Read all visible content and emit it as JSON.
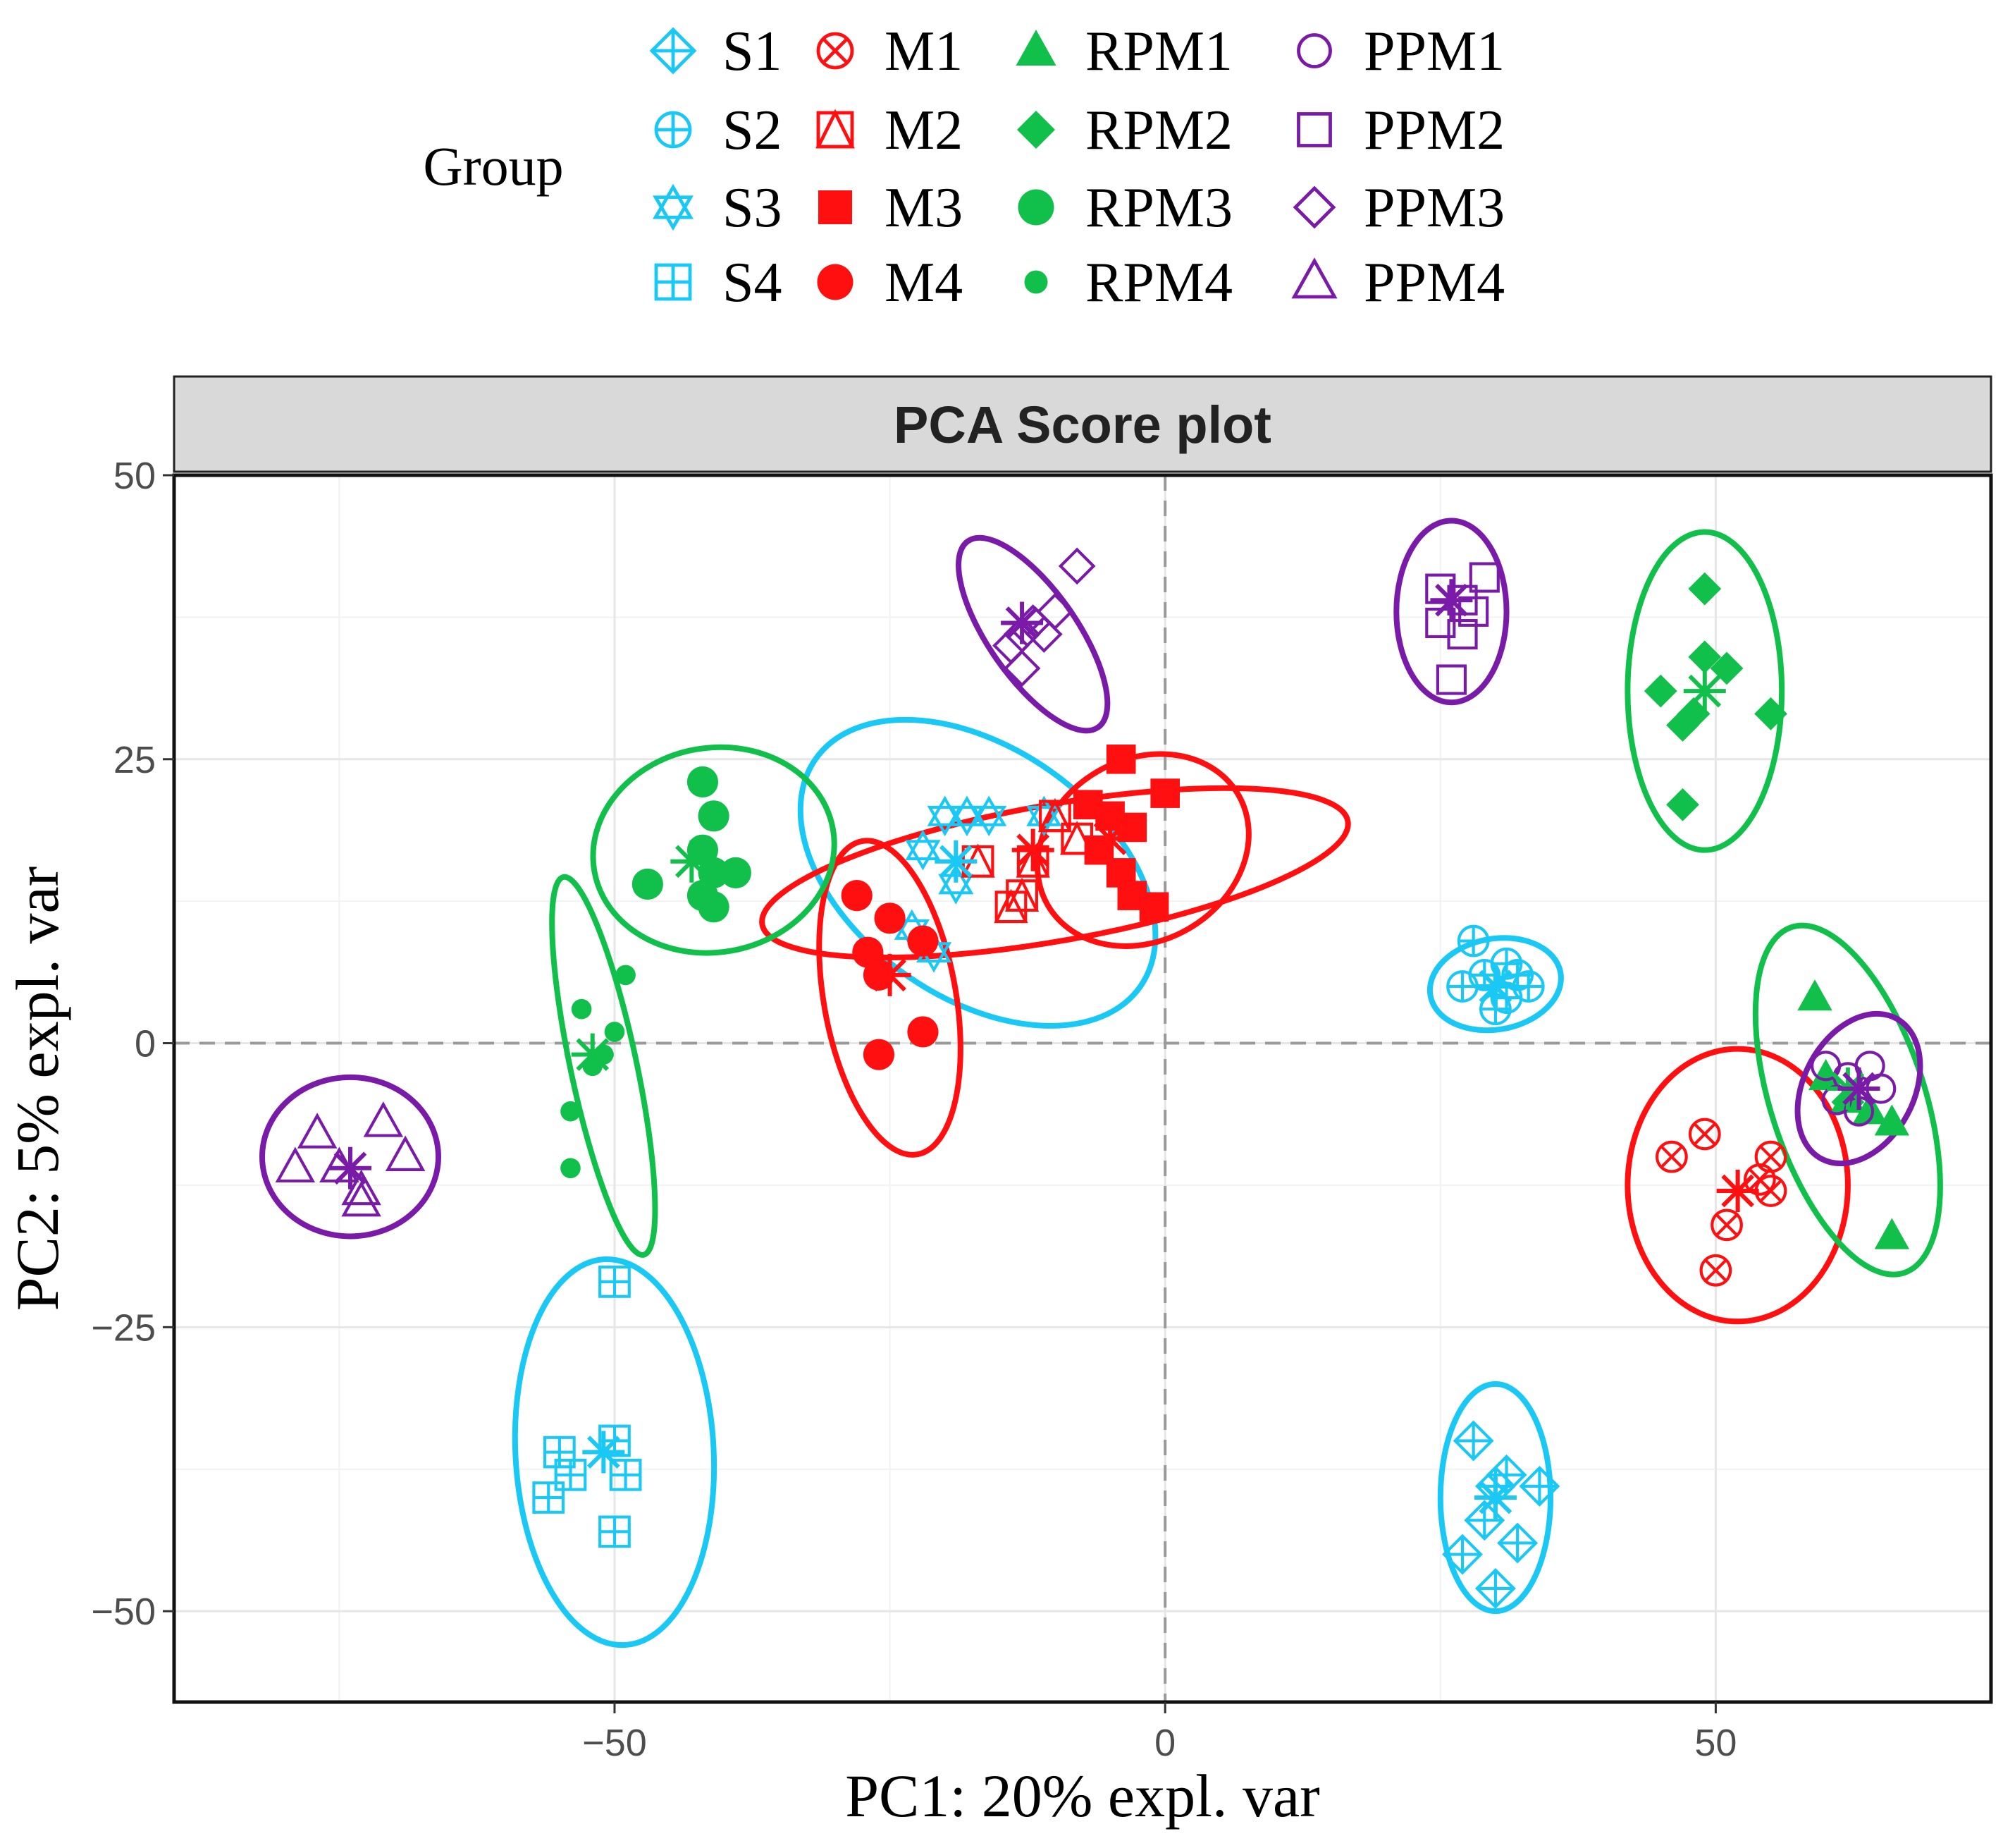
{
  "chart_data": {
    "type": "scatter",
    "title": "PCA Score plot",
    "xlabel": "PC1: 20% expl. var",
    "ylabel": "PC2: 5% expl. var",
    "xlim": [
      -90,
      75
    ],
    "ylim": [
      -58,
      50
    ],
    "x_ticks": [
      -50,
      0,
      50
    ],
    "y_ticks": [
      50,
      25,
      0,
      -25,
      -50
    ],
    "x_tick_labels": [
      "−50",
      "0",
      "50"
    ],
    "y_tick_labels": [
      "50",
      "25",
      "0",
      "−25",
      "−50"
    ],
    "grid": true,
    "reference_lines": {
      "x": 0,
      "y": 0
    },
    "legend": {
      "title": "Group",
      "placement": "top",
      "columns": [
        [
          "S1",
          "S2",
          "S3",
          "S4"
        ],
        [
          "M1",
          "M2",
          "M3",
          "M4"
        ],
        [
          "RPM1",
          "RPM2",
          "RPM3",
          "RPM4"
        ],
        [
          "PPM1",
          "PPM2",
          "PPM3",
          "PPM4"
        ]
      ]
    },
    "colors": {
      "S": "#19c8f5",
      "M": "#ff0f0f",
      "RPM": "#10c04a",
      "PPM": "#7a1aa8"
    },
    "series": [
      {
        "name": "S1",
        "family": "S",
        "marker": "diamond-plus",
        "centroid": [
          30,
          -40
        ],
        "points": [
          [
            28,
            -35
          ],
          [
            30,
            -39
          ],
          [
            31,
            -38
          ],
          [
            29,
            -42
          ],
          [
            32,
            -44
          ],
          [
            27,
            -45
          ],
          [
            34,
            -39
          ],
          [
            30,
            -48
          ]
        ],
        "ellipse": {
          "cx": 30,
          "cy": -40,
          "rx": 5,
          "ry": 10,
          "angle": 0
        }
      },
      {
        "name": "S2",
        "family": "S",
        "marker": "circle-plus",
        "centroid": [
          30,
          5
        ],
        "points": [
          [
            28,
            9
          ],
          [
            27,
            5
          ],
          [
            29,
            6
          ],
          [
            31,
            4
          ],
          [
            32,
            6
          ],
          [
            33,
            5
          ],
          [
            30,
            3
          ],
          [
            31,
            7
          ]
        ],
        "ellipse": {
          "cx": 30,
          "cy": 5.2,
          "rx": 6,
          "ry": 4,
          "angle": -10
        }
      },
      {
        "name": "S3",
        "family": "S",
        "marker": "star-of-david",
        "centroid": [
          -19,
          16
        ],
        "points": [
          [
            -20,
            20
          ],
          [
            -18,
            20
          ],
          [
            -16,
            20
          ],
          [
            -11,
            20
          ],
          [
            -22,
            17
          ],
          [
            -19,
            14
          ],
          [
            -23,
            10
          ],
          [
            -21,
            8
          ]
        ],
        "ellipse": {
          "cx": -17,
          "cy": 15,
          "rx": 18,
          "ry": 11,
          "angle": 35
        }
      },
      {
        "name": "S4",
        "family": "S",
        "marker": "square-plus",
        "centroid": [
          -51,
          -36
        ],
        "points": [
          [
            -50,
            -21
          ],
          [
            -55,
            -36
          ],
          [
            -50,
            -35
          ],
          [
            -54,
            -38
          ],
          [
            -49,
            -38
          ],
          [
            -56,
            -40
          ],
          [
            -50,
            -43
          ]
        ],
        "ellipse": {
          "cx": -50,
          "cy": -36,
          "rx": 9,
          "ry": 17,
          "angle": -3
        }
      },
      {
        "name": "M1",
        "family": "M",
        "marker": "circle-x",
        "centroid": [
          52,
          -13
        ],
        "points": [
          [
            46,
            -10
          ],
          [
            49,
            -8
          ],
          [
            55,
            -10
          ],
          [
            54,
            -12
          ],
          [
            51,
            -16
          ],
          [
            50,
            -20
          ],
          [
            55,
            -13
          ]
        ],
        "ellipse": {
          "cx": 52,
          "cy": -12.5,
          "rx": 10,
          "ry": 12,
          "angle": 0
        }
      },
      {
        "name": "M2",
        "family": "M",
        "marker": "square-triangle",
        "centroid": [
          -12,
          17
        ],
        "points": [
          [
            -17,
            16
          ],
          [
            -12,
            16
          ],
          [
            -13,
            13
          ],
          [
            -10,
            20
          ],
          [
            -8,
            18
          ],
          [
            -14,
            12
          ]
        ],
        "ellipse": {
          "cx": -10,
          "cy": 15,
          "rx": 27,
          "ry": 6,
          "angle": -10
        }
      },
      {
        "name": "M3",
        "family": "M",
        "marker": "square-filled",
        "centroid": [
          -5,
          18
        ],
        "points": [
          [
            -4,
            25
          ],
          [
            -5,
            20
          ],
          [
            -3,
            19
          ],
          [
            0,
            22
          ],
          [
            -4,
            15
          ],
          [
            -6,
            17
          ],
          [
            -3,
            13
          ],
          [
            -1,
            12
          ],
          [
            -7,
            21
          ]
        ],
        "ellipse": {
          "cx": -2,
          "cy": 17,
          "rx": 10,
          "ry": 8,
          "angle": -30
        }
      },
      {
        "name": "M4",
        "family": "M",
        "marker": "circle-filled",
        "centroid": [
          -25,
          6
        ],
        "points": [
          [
            -28,
            13
          ],
          [
            -25,
            11
          ],
          [
            -27,
            8
          ],
          [
            -22,
            9
          ],
          [
            -22,
            1
          ],
          [
            -26,
            -1
          ],
          [
            -26,
            6
          ]
        ],
        "ellipse": {
          "cx": -25,
          "cy": 4,
          "rx": 6,
          "ry": 14,
          "angle": -10
        }
      },
      {
        "name": "RPM1",
        "family": "RPM",
        "marker": "triangle-filled",
        "centroid": [
          62,
          -4
        ],
        "points": [
          [
            59,
            4
          ],
          [
            60,
            -3
          ],
          [
            62,
            -5
          ],
          [
            64,
            -6
          ],
          [
            66,
            -7
          ],
          [
            66,
            -17
          ]
        ],
        "ellipse": {
          "cx": 62,
          "cy": -5,
          "rx": 7,
          "ry": 16,
          "angle": -18
        }
      },
      {
        "name": "RPM2",
        "family": "RPM",
        "marker": "diamond-filled",
        "centroid": [
          49,
          31
        ],
        "points": [
          [
            49,
            40
          ],
          [
            49,
            34
          ],
          [
            51,
            33
          ],
          [
            45,
            31
          ],
          [
            48,
            29
          ],
          [
            47,
            28
          ],
          [
            55,
            29
          ],
          [
            47,
            21
          ]
        ],
        "ellipse": {
          "cx": 49,
          "cy": 31,
          "rx": 7,
          "ry": 14,
          "angle": 0
        }
      },
      {
        "name": "RPM3",
        "family": "RPM",
        "marker": "circle-filled",
        "centroid": [
          -43,
          16
        ],
        "points": [
          [
            -42,
            23
          ],
          [
            -41,
            20
          ],
          [
            -42,
            17
          ],
          [
            -41,
            15
          ],
          [
            -39,
            15
          ],
          [
            -42,
            13
          ],
          [
            -41,
            12
          ],
          [
            -47,
            14
          ]
        ],
        "ellipse": {
          "cx": -41,
          "cy": 17,
          "rx": 11,
          "ry": 9,
          "angle": -10
        }
      },
      {
        "name": "RPM4",
        "family": "RPM",
        "marker": "circle-small",
        "centroid": [
          -52,
          -1
        ],
        "points": [
          [
            -49,
            6
          ],
          [
            -53,
            3
          ],
          [
            -50,
            1
          ],
          [
            -52,
            -2
          ],
          [
            -54,
            -6
          ],
          [
            -54,
            -11
          ],
          [
            -51,
            -1
          ]
        ],
        "ellipse": {
          "cx": -51,
          "cy": -2,
          "rx": 3,
          "ry": 17,
          "angle": -12
        }
      },
      {
        "name": "PPM1",
        "family": "PPM",
        "marker": "circle-open",
        "centroid": [
          63,
          -4
        ],
        "points": [
          [
            64,
            -2
          ],
          [
            62,
            -3
          ],
          [
            65,
            -4
          ],
          [
            60,
            -2
          ],
          [
            61,
            -5
          ],
          [
            63,
            -6
          ]
        ],
        "ellipse": {
          "cx": 63,
          "cy": -4,
          "rx": 5,
          "ry": 7,
          "angle": 28
        }
      },
      {
        "name": "PPM2",
        "family": "PPM",
        "marker": "square-open",
        "centroid": [
          26,
          39
        ],
        "points": [
          [
            25,
            40
          ],
          [
            27,
            39
          ],
          [
            28,
            38
          ],
          [
            25,
            37
          ],
          [
            27,
            36
          ],
          [
            29,
            41
          ],
          [
            26,
            32
          ]
        ],
        "ellipse": {
          "cx": 26,
          "cy": 38,
          "rx": 5,
          "ry": 8,
          "angle": 0
        }
      },
      {
        "name": "PPM3",
        "family": "PPM",
        "marker": "diamond-open",
        "centroid": [
          -13,
          37
        ],
        "points": [
          [
            -12,
            37
          ],
          [
            -13,
            36
          ],
          [
            -11,
            36
          ],
          [
            -10,
            38
          ],
          [
            -14,
            35
          ],
          [
            -13,
            33
          ],
          [
            -8,
            42
          ]
        ],
        "ellipse": {
          "cx": -12,
          "cy": 36,
          "rx": 4,
          "ry": 10,
          "angle": -35
        }
      },
      {
        "name": "PPM4",
        "family": "PPM",
        "marker": "triangle-open",
        "centroid": [
          -74,
          -11
        ],
        "points": [
          [
            -77,
            -8
          ],
          [
            -71,
            -7
          ],
          [
            -69,
            -10
          ],
          [
            -75,
            -11
          ],
          [
            -73,
            -13
          ],
          [
            -79,
            -11
          ],
          [
            -73,
            -14
          ]
        ],
        "ellipse": {
          "cx": -74,
          "cy": -10,
          "rx": 8,
          "ry": 7,
          "angle": 0
        }
      }
    ]
  }
}
